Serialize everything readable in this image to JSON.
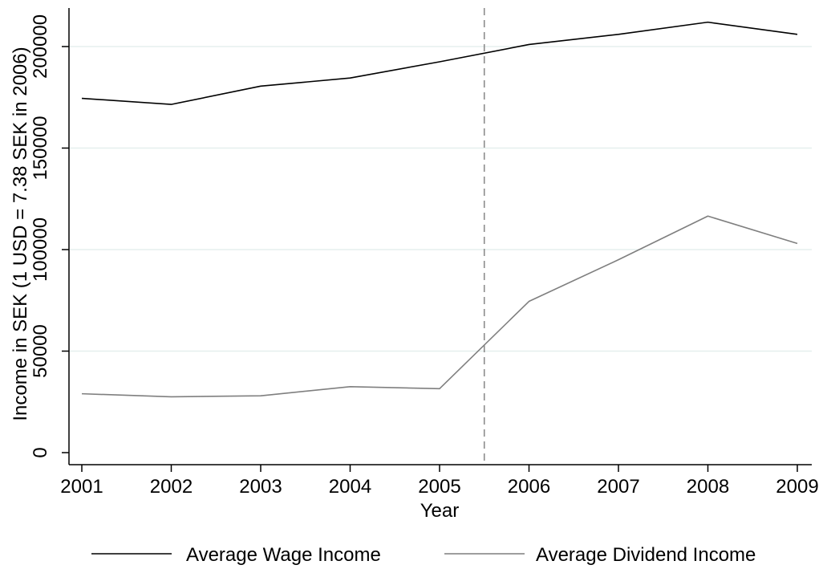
{
  "chart_data": {
    "type": "line",
    "title": "",
    "xlabel": "Year",
    "ylabel": "Income in SEK (1 USD = 7.38 SEK in 2006)",
    "x": [
      "2001",
      "2002",
      "2003",
      "2004",
      "2005",
      "2006",
      "2007",
      "2008",
      "2009"
    ],
    "xlim": [
      2001,
      2009
    ],
    "ylim": [
      -5000,
      220000
    ],
    "yticks": [
      "0",
      "50000",
      "100000",
      "150000",
      "200000"
    ],
    "ytick_values": [
      0,
      50000,
      100000,
      150000,
      200000
    ],
    "grid": true,
    "legend_position": "bottom",
    "reference_line": {
      "x": 2005.5,
      "style": "dashed"
    },
    "series": [
      {
        "name": "Average Wage Income",
        "color": "#000000",
        "values": [
          174500,
          171500,
          180500,
          184500,
          192500,
          201000,
          206000,
          212000,
          206000
        ]
      },
      {
        "name": "Average Dividend Income",
        "color": "#7f7f7f",
        "values": [
          29000,
          27500,
          28000,
          32500,
          31500,
          74500,
          95000,
          116500,
          103000
        ]
      }
    ]
  }
}
